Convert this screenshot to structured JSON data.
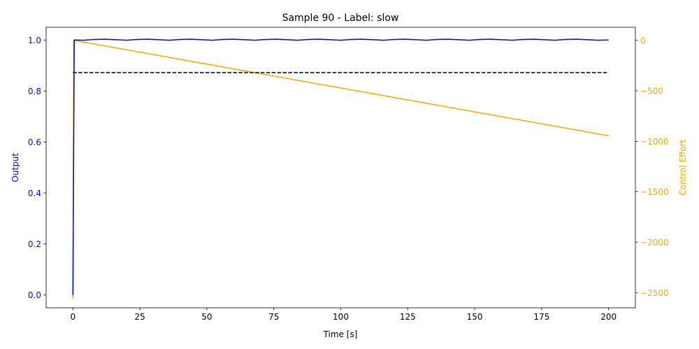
{
  "chart_data": {
    "type": "line",
    "title": "Sample 90 - Label: slow",
    "xlabel": "Time [s]",
    "ylabel_left": "Output",
    "ylabel_right": "Control Effort",
    "xlim": [
      -10,
      210
    ],
    "ylim_left": [
      -0.05,
      1.05
    ],
    "ylim_right": [
      -2650,
      130
    ],
    "x_ticks": [
      0,
      25,
      50,
      75,
      100,
      125,
      150,
      175,
      200
    ],
    "y_left_ticks": [
      0.0,
      0.2,
      0.4,
      0.6,
      0.8,
      1.0
    ],
    "y_right_ticks": [
      0,
      -500,
      -1000,
      -1500,
      -2000,
      -2500
    ],
    "x_tick_labels": [
      "0",
      "25",
      "50",
      "75",
      "100",
      "125",
      "150",
      "175",
      "200"
    ],
    "y_left_tick_labels": [
      "0.0",
      "0.2",
      "0.4",
      "0.6",
      "0.8",
      "1.0"
    ],
    "y_right_tick_labels": [
      "0",
      "−500",
      "−1000",
      "−1500",
      "−2000",
      "−2500"
    ],
    "grid": false,
    "colors": {
      "output": "#0000ff",
      "control": "#ffa500",
      "reference": "#000000",
      "left_axis": "#0000ff",
      "right_axis": "#ffa500"
    },
    "series": [
      {
        "axis": "left",
        "style": "solid",
        "x": [
          0,
          0.5,
          4,
          8,
          12,
          16,
          20,
          24,
          28,
          32,
          36,
          40,
          44,
          48,
          52,
          56,
          60,
          64,
          68,
          72,
          76,
          80,
          84,
          88,
          92,
          96,
          100,
          104,
          108,
          112,
          116,
          120,
          124,
          128,
          132,
          136,
          140,
          144,
          148,
          152,
          156,
          160,
          164,
          168,
          172,
          176,
          180,
          184,
          188,
          192,
          196,
          200
        ],
        "values": [
          0.0,
          1.0,
          0.999,
          1.002,
          1.003,
          1.001,
          0.999,
          1.002,
          1.003,
          1.001,
          0.999,
          1.002,
          1.003,
          1.001,
          0.999,
          1.002,
          1.003,
          1.001,
          0.999,
          1.002,
          1.003,
          1.001,
          0.999,
          1.002,
          1.003,
          1.001,
          0.999,
          1.002,
          1.003,
          1.001,
          0.999,
          1.002,
          1.003,
          1.001,
          0.999,
          1.002,
          1.003,
          1.001,
          0.999,
          1.002,
          1.003,
          1.001,
          0.999,
          1.002,
          1.003,
          1.001,
          0.999,
          1.002,
          1.003,
          1.001,
          0.999,
          1.0
        ]
      },
      {
        "axis": "left",
        "style": "dashed",
        "x": [
          0,
          200
        ],
        "values": [
          0.872,
          0.872
        ]
      },
      {
        "axis": "right",
        "style": "solid",
        "x": [
          0,
          0.3,
          200
        ],
        "values": [
          -2560,
          0,
          -945
        ]
      }
    ]
  }
}
